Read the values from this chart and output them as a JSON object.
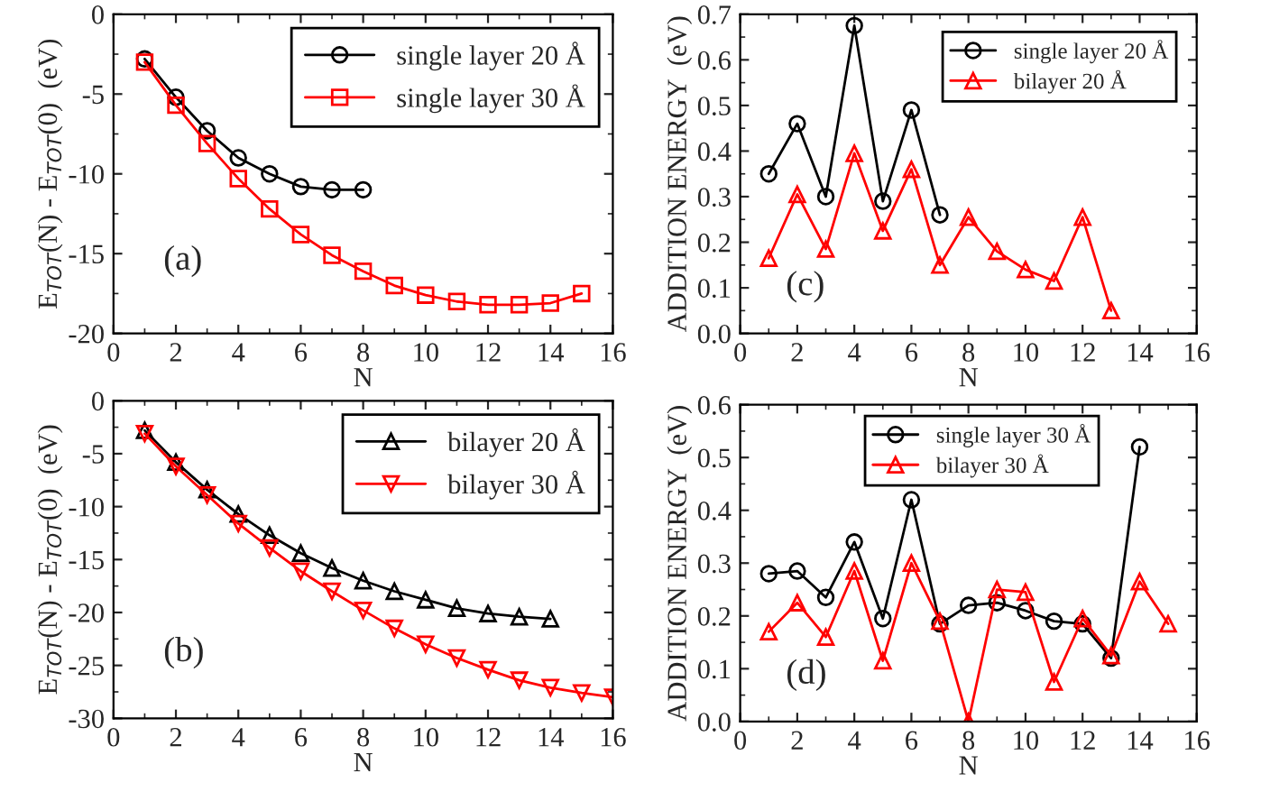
{
  "chart_data": [
    {
      "type": "line",
      "xlabel": "N",
      "ylabel": "E$_{TOT}$(N) - E$_{TOT}$(0)  (eV)",
      "annotations": [
        "(a)"
      ],
      "xlim": [
        0,
        16
      ],
      "xticks": [
        0,
        2,
        4,
        6,
        8,
        10,
        12,
        14,
        16
      ],
      "ylim": [
        -20,
        0
      ],
      "yticks": [
        -20,
        -15,
        -10,
        -5,
        0
      ],
      "legend": "top right",
      "grid": false,
      "series": [
        {
          "name": "single layer 20 Å",
          "color": "#000000",
          "marker": "circle",
          "x": [
            1,
            2,
            3,
            4,
            5,
            6,
            7,
            8
          ],
          "values": [
            -2.8,
            -5.2,
            -7.3,
            -9.0,
            -10.0,
            -10.8,
            -11.0,
            -11.0
          ]
        },
        {
          "name": "single layer 30 Å",
          "color": "#ff0000",
          "marker": "square",
          "x": [
            1,
            2,
            3,
            4,
            5,
            6,
            7,
            8,
            9,
            10,
            11,
            12,
            13,
            14,
            15
          ],
          "values": [
            -3.0,
            -5.7,
            -8.1,
            -10.3,
            -12.2,
            -13.8,
            -15.1,
            -16.1,
            -17.0,
            -17.6,
            -18.0,
            -18.2,
            -18.2,
            -18.1,
            -17.5
          ]
        }
      ]
    },
    {
      "type": "line",
      "xlabel": "N",
      "ylabel": "ADDITION ENERGY  (eV)",
      "annotations": [
        "(c)"
      ],
      "xlim": [
        0,
        16
      ],
      "xticks": [
        0,
        2,
        4,
        6,
        8,
        10,
        12,
        14,
        16
      ],
      "ylim": [
        0,
        0.7
      ],
      "yticks": [
        {
          "value": 0,
          "label": "0.0"
        },
        0.1,
        0.2,
        0.3,
        0.4,
        0.5,
        0.6,
        0.7
      ],
      "legend": "top right",
      "grid": false,
      "series": [
        {
          "name": "single layer 20 Å",
          "color": "#000000",
          "marker": "circle",
          "x": [
            1,
            2,
            3,
            4,
            5,
            6,
            7
          ],
          "values": [
            0.35,
            0.46,
            0.3,
            0.675,
            0.29,
            0.49,
            0.26
          ]
        },
        {
          "name": "bilayer 20 Å",
          "color": "#ff0000",
          "marker": "triangle",
          "x": [
            1,
            2,
            3,
            4,
            5,
            6,
            7,
            8,
            9,
            10,
            11,
            12,
            13
          ],
          "values": [
            0.165,
            0.305,
            0.185,
            0.395,
            0.225,
            0.36,
            0.15,
            0.255,
            0.18,
            0.14,
            0.115,
            0.255,
            0.05
          ]
        }
      ]
    },
    {
      "type": "line",
      "xlabel": "N",
      "ylabel": "E$_{TOT}$(N) - E$_{TOT}$(0)  (eV)",
      "annotations": [
        "(b)"
      ],
      "xlim": [
        0,
        16
      ],
      "xticks": [
        0,
        2,
        4,
        6,
        8,
        10,
        12,
        14,
        16
      ],
      "ylim": [
        -30,
        0
      ],
      "yticks": [
        -30,
        -25,
        -20,
        -15,
        -10,
        -5,
        0
      ],
      "legend": "top right",
      "grid": false,
      "series": [
        {
          "name": "bilayer 20 Å",
          "color": "#000000",
          "marker": "triangle",
          "x": [
            1,
            2,
            3,
            4,
            5,
            6,
            7,
            8,
            9,
            10,
            11,
            12,
            13,
            14
          ],
          "values": [
            -2.8,
            -5.8,
            -8.4,
            -10.7,
            -12.7,
            -14.4,
            -15.8,
            -17.0,
            -18.0,
            -18.8,
            -19.6,
            -20.1,
            -20.4,
            -20.6
          ]
        },
        {
          "name": "bilayer 30 Å",
          "color": "#ff0000",
          "marker": "triangle_down",
          "x": [
            1,
            2,
            3,
            4,
            5,
            6,
            7,
            8,
            9,
            10,
            11,
            12,
            13,
            14,
            15,
            16
          ],
          "values": [
            -3.1,
            -6.2,
            -8.9,
            -11.6,
            -13.9,
            -16.1,
            -18.0,
            -19.8,
            -21.5,
            -23.0,
            -24.3,
            -25.4,
            -26.4,
            -27.1,
            -27.6,
            -28.0
          ]
        }
      ]
    },
    {
      "type": "line",
      "xlabel": "N",
      "ylabel": "ADDITION ENERGY  (eV)",
      "annotations": [
        "(d)"
      ],
      "xlim": [
        0,
        16
      ],
      "xticks": [
        0,
        2,
        4,
        6,
        8,
        10,
        12,
        14,
        16
      ],
      "ylim": [
        0,
        0.6
      ],
      "yticks": [
        {
          "value": 0,
          "label": "0.0"
        },
        0.1,
        0.2,
        0.3,
        0.4,
        0.5,
        0.6
      ],
      "legend": "top right",
      "grid": false,
      "series": [
        {
          "name": "single layer 30 Å",
          "color": "#000000",
          "marker": "circle",
          "x": [
            1,
            2,
            3,
            4,
            5,
            6,
            7,
            8,
            9,
            10,
            11,
            12,
            13,
            14
          ],
          "values": [
            0.28,
            0.285,
            0.235,
            0.34,
            0.195,
            0.42,
            0.185,
            0.22,
            0.225,
            0.21,
            0.19,
            0.185,
            0.12,
            0.52
          ]
        },
        {
          "name": "bilayer 30 Å",
          "color": "#ff0000",
          "marker": "triangle",
          "x": [
            1,
            2,
            3,
            4,
            5,
            6,
            7,
            8,
            9,
            10,
            11,
            12,
            13,
            14,
            15
          ],
          "values": [
            0.17,
            0.225,
            0.16,
            0.285,
            0.115,
            0.3,
            0.19,
            0.0,
            0.25,
            0.245,
            0.075,
            0.195,
            0.125,
            0.265,
            0.185
          ]
        }
      ]
    }
  ]
}
